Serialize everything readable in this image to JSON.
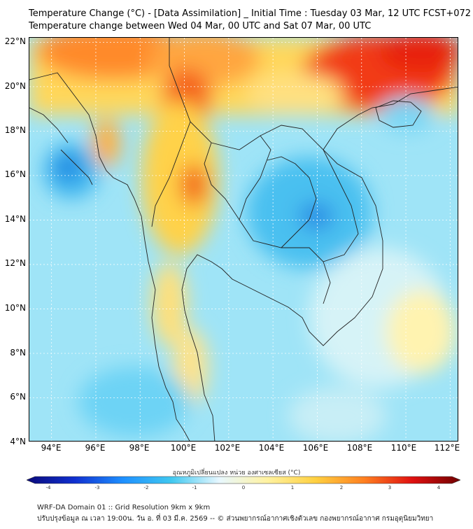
{
  "header": {
    "title_line1": "Temperature Change (°C) - [Data Assimilation] _ Initial Time : Tuesday 03 Mar, 12 UTC FCST+072",
    "title_line2": "Temperature change between Wed 04 Mar, 00 UTC and Sat 07 Mar, 00 UTC"
  },
  "map": {
    "lat_labels": [
      "22°N",
      "20°N",
      "18°N",
      "16°N",
      "14°N",
      "12°N",
      "10°N",
      "8°N",
      "6°N",
      "4°N"
    ],
    "lon_labels": [
      "94°E",
      "96°E",
      "98°E",
      "100°E",
      "102°E",
      "104°E",
      "106°E",
      "108°E",
      "110°E",
      "112°E"
    ],
    "lat_range": [
      4,
      22.2
    ],
    "lon_range": [
      93,
      112.4
    ]
  },
  "colorbar": {
    "title": "อุณหภูมิเปลี่ยนแปลง หน่วย องศาเซลเซียส (°C)",
    "min": -4,
    "max": 4,
    "tick_labels": [
      "-4",
      "-3",
      "-2",
      "-1",
      "0",
      "1",
      "2",
      "3",
      "4"
    ],
    "colors": [
      "#0a0a7a",
      "#1030d0",
      "#1e90ff",
      "#40c8f0",
      "#e8f8ff",
      "#fff2a0",
      "#ffd040",
      "#ff8020",
      "#e01010",
      "#700000"
    ]
  },
  "footer": {
    "line1": "WRF-DA Domain 01 :: Grid Resolution 9km x 9km",
    "line2": "ปรับปรุงข้อมูล ณ เวลา 19:00น. วัน อ. ที่ 03 มี.ค. 2569 -- © ส่วนพยากรณ์อากาศเชิงตัวเลข กองพยากรณ์อากาศ กรมอุตุนิยมวิทยา"
  }
}
